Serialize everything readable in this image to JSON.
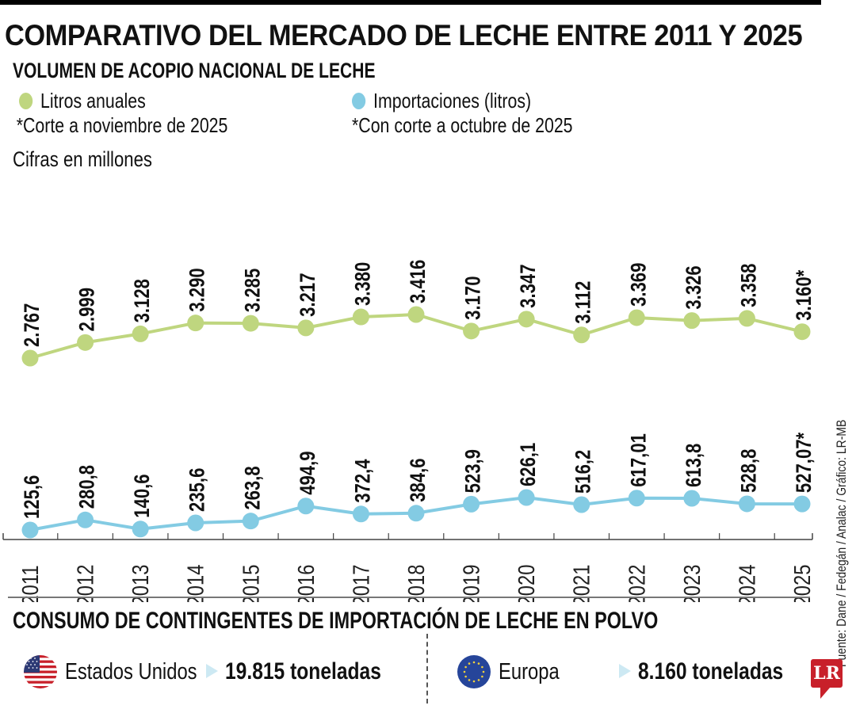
{
  "header": {
    "title": "COMPARATIVO DEL MERCADO DE LECHE ENTRE 2011 Y 2025",
    "subtitle": "VOLUMEN DE ACOPIO NACIONAL DE LECHE",
    "units_note": "Cifras en millones"
  },
  "legend": [
    {
      "label": "Litros anuales",
      "note": "*Corte a noviembre de 2025",
      "color": "#bfd67f"
    },
    {
      "label": "Importaciones (litros)",
      "note": "*Con corte a octubre de 2025",
      "color": "#83cbe3"
    }
  ],
  "chart_data": {
    "type": "line",
    "title": "Volumen de acopio nacional de leche",
    "xlabel": "",
    "ylabel": "Cifras en millones",
    "x": [
      "2011",
      "2012",
      "2013",
      "2014",
      "2015",
      "2016",
      "2017",
      "2018",
      "2019",
      "2020",
      "2021",
      "2022",
      "2023",
      "2024",
      "2025"
    ],
    "series": [
      {
        "name": "Litros anuales",
        "color": "#bfd67f",
        "values": [
          2767,
          2999,
          3128,
          3290,
          3285,
          3217,
          3380,
          3416,
          3170,
          3347,
          3112,
          3369,
          3326,
          3358,
          3160
        ],
        "labels": [
          "2.767",
          "2.999",
          "3.128",
          "3.290",
          "3.285",
          "3.217",
          "3.380",
          "3.416",
          "3.170",
          "3.347",
          "3.112",
          "3.369",
          "3.326",
          "3.358",
          "3.160*"
        ]
      },
      {
        "name": "Importaciones (litros)",
        "color": "#83cbe3",
        "values": [
          125.6,
          280.8,
          140.6,
          235.6,
          263.8,
          494.9,
          372.4,
          384.6,
          523.9,
          626.1,
          516.2,
          617.01,
          613.8,
          528.8,
          527.07
        ],
        "labels": [
          "125,6",
          "280,8",
          "140,6",
          "235,6",
          "263,8",
          "494,9",
          "372,4",
          "384,6",
          "523,9",
          "626,1",
          "516,2",
          "617,01",
          "613,8",
          "528,8",
          "527,07*"
        ]
      }
    ],
    "grid": false,
    "legend_position": "top-left"
  },
  "section2": {
    "title": "CONSUMO DE CONTINGENTES DE IMPORTACIÓN DE LECHE EN POLVO",
    "items": [
      {
        "country": "Estados Unidos",
        "flag": "us-flag",
        "amount": "19.815 toneladas"
      },
      {
        "country": "Europa",
        "flag": "eu-flag",
        "amount": "8.160 toneladas"
      }
    ]
  },
  "footer": {
    "source": "Fuente: Dane / Fedegán / Analac / Gráfico: LR-MB",
    "logo": "LR"
  }
}
